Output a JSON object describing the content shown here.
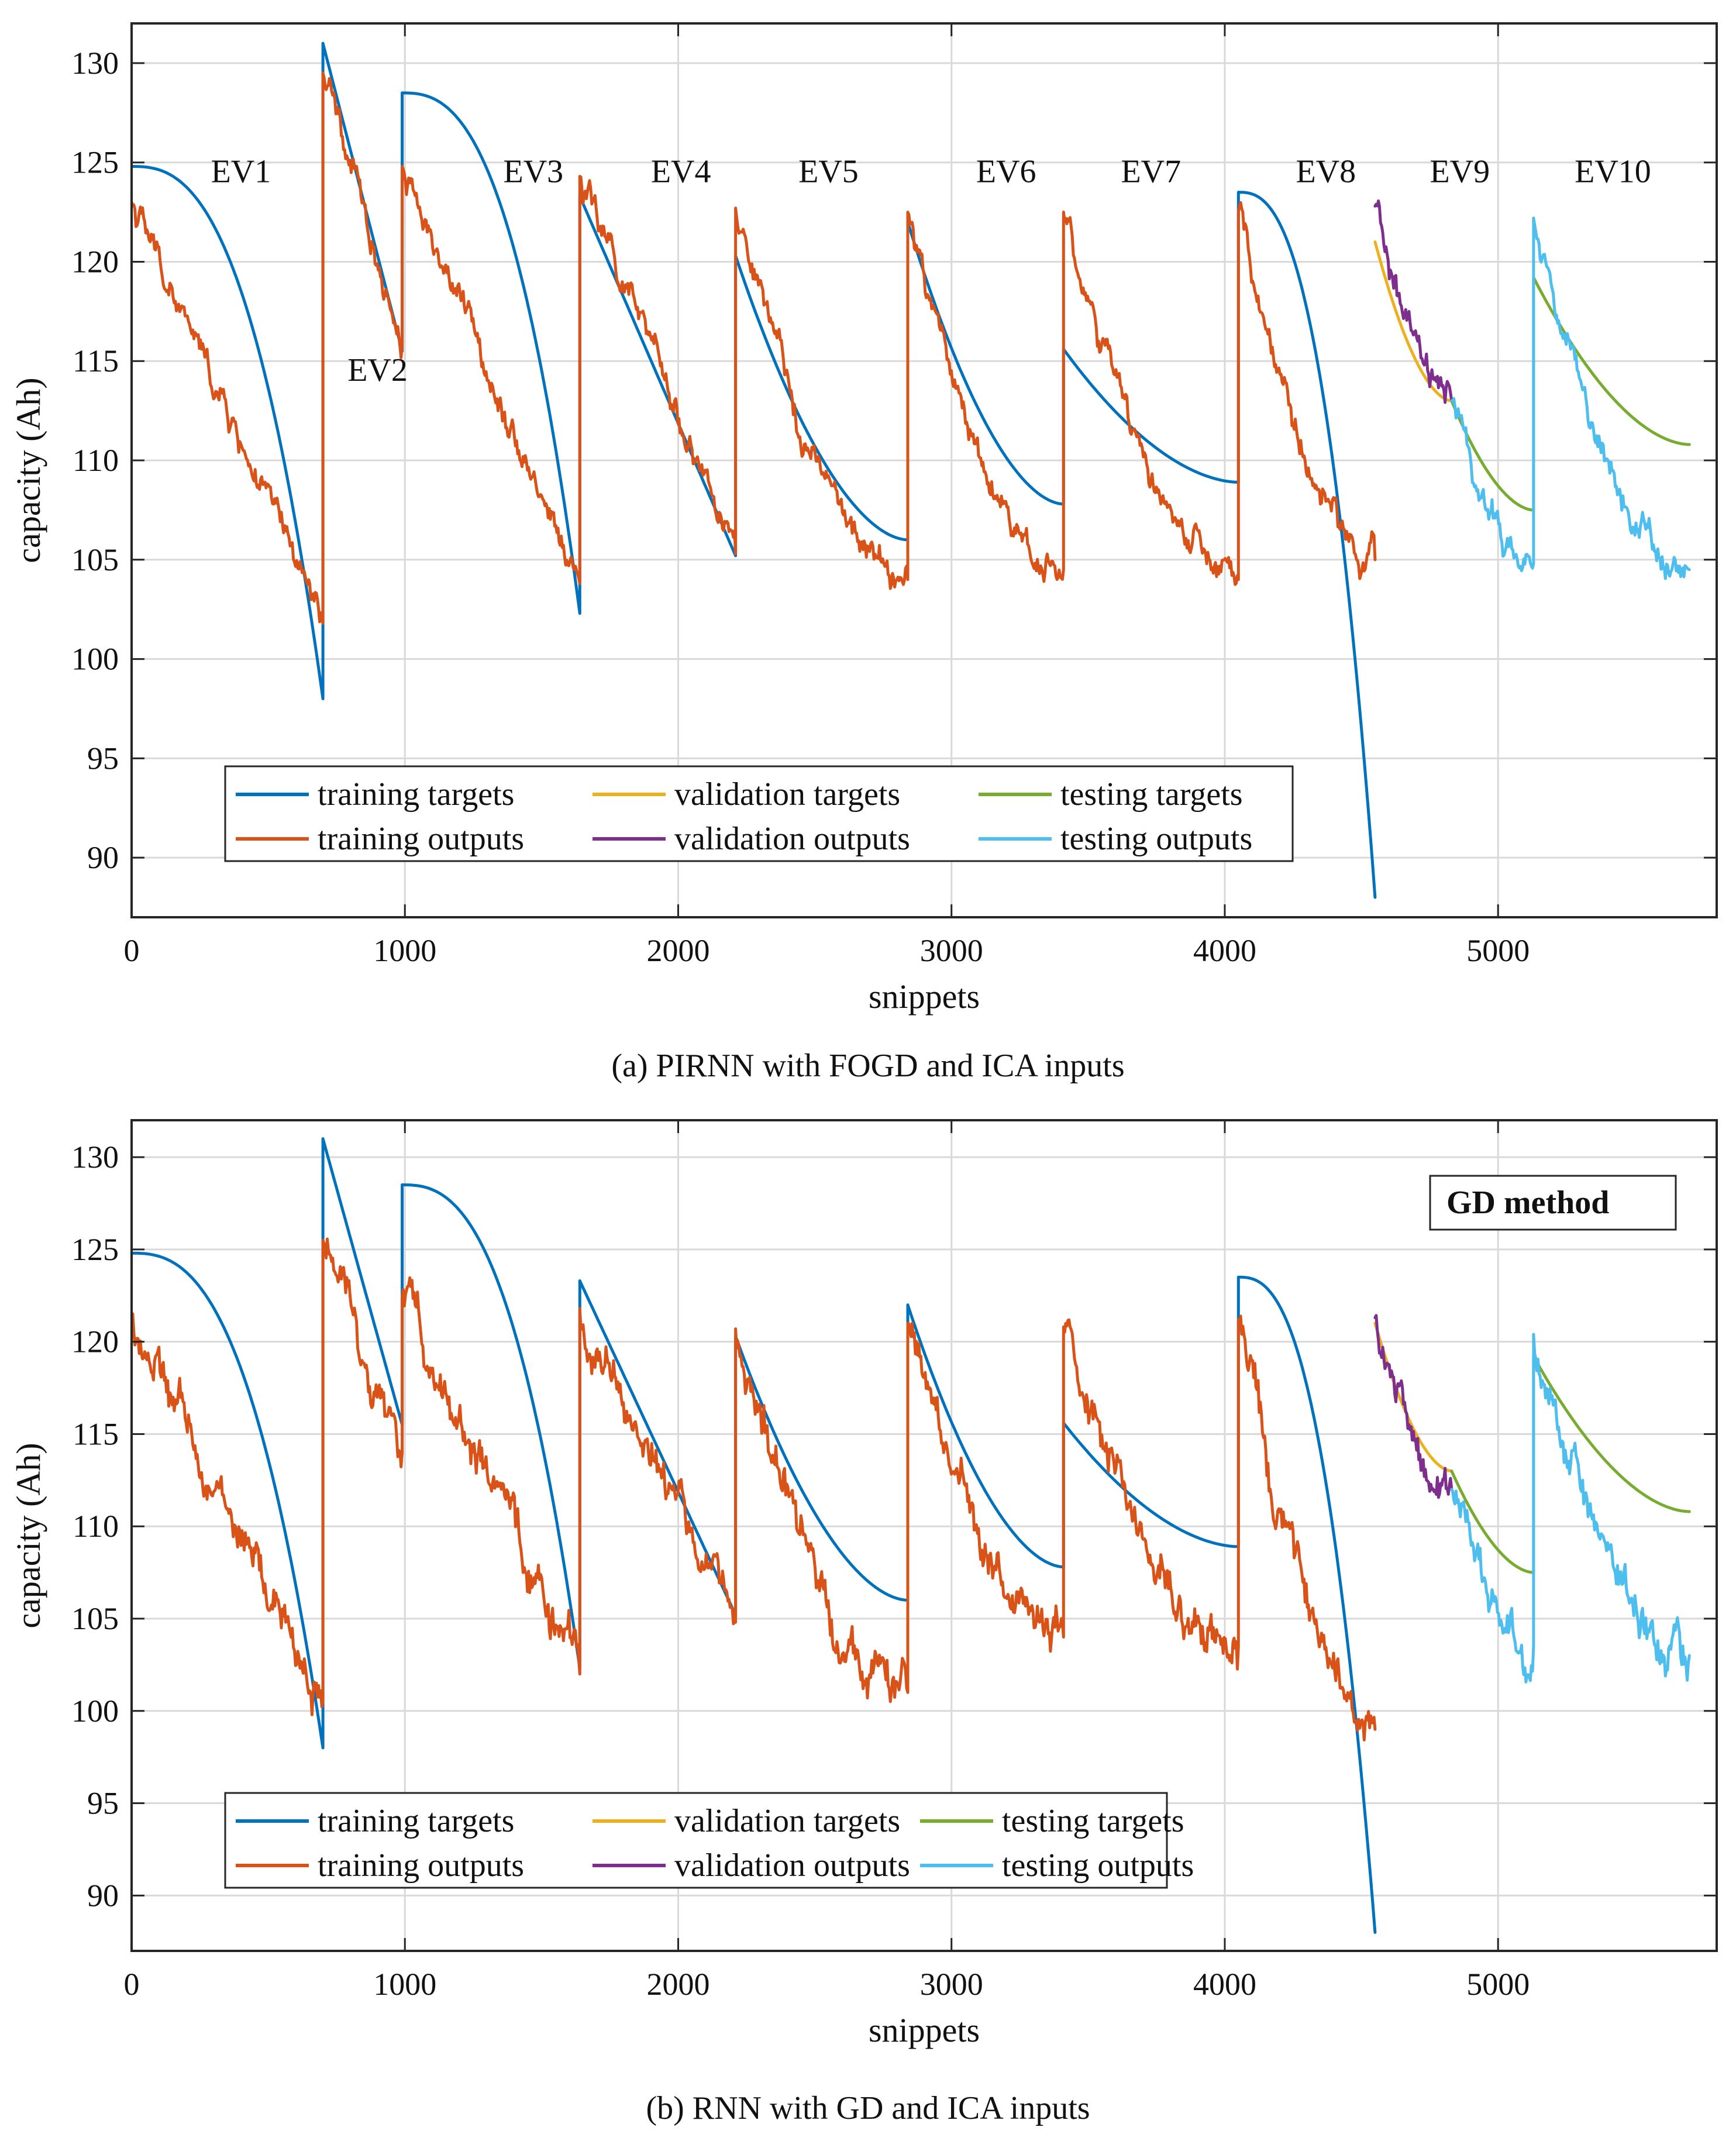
{
  "colors": {
    "training_targets": "#0072BD",
    "training_outputs": "#D95319",
    "validation_targets": "#EDB120",
    "validation_outputs": "#7E2F8E",
    "testing_targets": "#77AC30",
    "testing_outputs": "#4DBEEE"
  },
  "chart_data": [
    {
      "type": "line",
      "caption": "(a) PIRNN with FOGD and ICA inputs",
      "xlabel": "snippets",
      "ylabel": "capacity (Ah)",
      "xlim": [
        0,
        5800
      ],
      "ylim": [
        87,
        132
      ],
      "xticks": [
        0,
        1000,
        2000,
        3000,
        4000,
        5000
      ],
      "yticks": [
        90,
        95,
        100,
        105,
        110,
        115,
        120,
        125,
        130
      ],
      "grid": true,
      "legend_position": "bottom-left",
      "annotations": [
        {
          "text": "EV1",
          "x": 400,
          "y": 124
        },
        {
          "text": "EV2",
          "x": 900,
          "y": 114
        },
        {
          "text": "EV3",
          "x": 1470,
          "y": 124
        },
        {
          "text": "EV4",
          "x": 2010,
          "y": 124
        },
        {
          "text": "EV5",
          "x": 2550,
          "y": 124
        },
        {
          "text": "EV6",
          "x": 3200,
          "y": 124
        },
        {
          "text": "EV7",
          "x": 3730,
          "y": 124
        },
        {
          "text": "EV8",
          "x": 4370,
          "y": 124
        },
        {
          "text": "EV9",
          "x": 4860,
          "y": 124
        },
        {
          "text": "EV10",
          "x": 5420,
          "y": 124
        }
      ],
      "series": [
        {
          "name": "training targets",
          "color_key": "training_targets",
          "x": [
            0,
            700,
            700,
            990,
            990,
            1640,
            1640,
            2210,
            2210,
            2840,
            2840,
            3410,
            3410,
            4050,
            4050,
            4550
          ],
          "y": [
            124.8,
            98,
            131,
            115.5,
            128.5,
            102.3,
            123.3,
            105.2,
            120.3,
            106,
            122,
            107.8,
            115.6,
            108.9,
            123.5,
            88
          ]
        },
        {
          "name": "training outputs",
          "color_key": "training_outputs",
          "x": [
            0,
            700,
            700,
            990,
            990,
            1640,
            1640,
            2210,
            2210,
            2840,
            2840,
            3410,
            3410,
            4050,
            4050,
            4550
          ],
          "y": [
            123,
            101.8,
            129.5,
            115.8,
            124.8,
            103.8,
            124.3,
            105.3,
            122.7,
            104,
            122.5,
            104.5,
            122.5,
            104,
            122.5,
            105
          ]
        },
        {
          "name": "validation targets",
          "color_key": "validation_targets",
          "x": [
            4550,
            4830
          ],
          "y": [
            121,
            113
          ]
        },
        {
          "name": "validation outputs",
          "color_key": "validation_outputs",
          "x": [
            4550,
            4830
          ],
          "y": [
            122.8,
            113
          ]
        },
        {
          "name": "testing targets",
          "color_key": "testing_targets",
          "x": [
            4830,
            5130,
            5130,
            5700
          ],
          "y": [
            113,
            107.5,
            119.2,
            110.8
          ]
        },
        {
          "name": "testing outputs",
          "color_key": "testing_outputs",
          "x": [
            4830,
            5130,
            5130,
            5700
          ],
          "y": [
            113,
            104.8,
            122.2,
            104.5
          ]
        }
      ]
    },
    {
      "type": "line",
      "caption": "(b) RNN with GD and ICA inputs",
      "xlabel": "snippets",
      "ylabel": "capacity (Ah)",
      "xlim": [
        0,
        5800
      ],
      "ylim": [
        87,
        132
      ],
      "xticks": [
        0,
        1000,
        2000,
        3000,
        4000,
        5000
      ],
      "yticks": [
        90,
        95,
        100,
        105,
        110,
        115,
        120,
        125,
        130
      ],
      "grid": true,
      "legend_position": "bottom-left",
      "annotations": [
        {
          "text": "GD method",
          "boxed": true,
          "position": "top-right"
        }
      ],
      "series": [
        {
          "name": "training targets",
          "color_key": "training_targets",
          "x": [
            0,
            700,
            700,
            990,
            990,
            1640,
            1640,
            2210,
            2210,
            2840,
            2840,
            3410,
            3410,
            4050,
            4050,
            4550
          ],
          "y": [
            124.8,
            98,
            131,
            115.5,
            128.5,
            102.3,
            123.3,
            105.2,
            120.3,
            106,
            122,
            107.8,
            115.6,
            108.9,
            123.5,
            88
          ]
        },
        {
          "name": "training outputs",
          "color_key": "training_outputs",
          "x": [
            0,
            700,
            700,
            990,
            990,
            1640,
            1640,
            2210,
            2210,
            2840,
            2840,
            3410,
            3410,
            4050,
            4050,
            4550
          ],
          "y": [
            121,
            100.5,
            125.5,
            114,
            122.4,
            102,
            121.8,
            104.8,
            120.7,
            101,
            121,
            104,
            120.8,
            103.5,
            121.2,
            99
          ]
        },
        {
          "name": "validation targets",
          "color_key": "validation_targets",
          "x": [
            4550,
            4830
          ],
          "y": [
            121,
            113
          ]
        },
        {
          "name": "validation outputs",
          "color_key": "validation_outputs",
          "x": [
            4550,
            4830
          ],
          "y": [
            121.3,
            112
          ]
        },
        {
          "name": "testing targets",
          "color_key": "testing_targets",
          "x": [
            4830,
            5130,
            5130,
            5700
          ],
          "y": [
            113,
            107.5,
            119.2,
            110.8
          ]
        },
        {
          "name": "testing outputs",
          "color_key": "testing_outputs",
          "x": [
            4830,
            5130,
            5130,
            5700
          ],
          "y": [
            112,
            103.5,
            120.4,
            103
          ]
        }
      ]
    }
  ]
}
